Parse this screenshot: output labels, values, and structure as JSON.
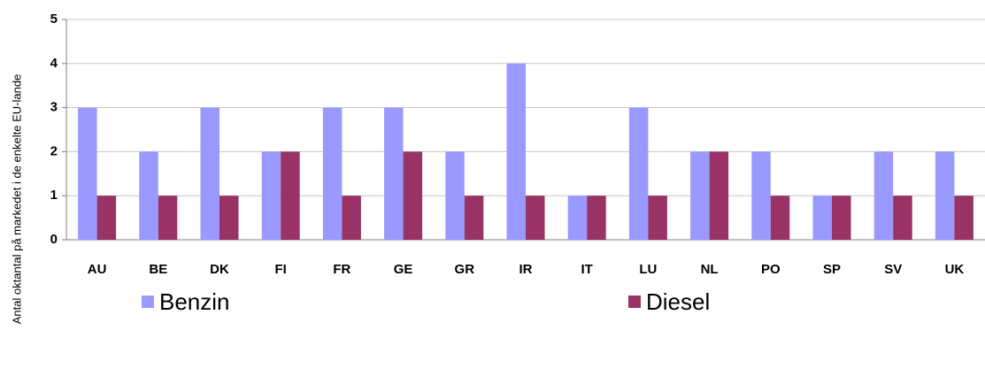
{
  "chart_data": {
    "type": "bar",
    "y_label": "Antal oktantal på markedet i de enkelte EU-lande",
    "categories": [
      "AU",
      "BE",
      "DK",
      "FI",
      "FR",
      "GE",
      "GR",
      "IR",
      "IT",
      "LU",
      "NL",
      "PO",
      "SP",
      "SV",
      "UK"
    ],
    "series": [
      {
        "name": "Benzin",
        "color": "#9999ff",
        "values": [
          3,
          2,
          3,
          2,
          3,
          3,
          2,
          4,
          1,
          3,
          2,
          2,
          1,
          2,
          2
        ]
      },
      {
        "name": "Diesel",
        "color": "#993366",
        "values": [
          1,
          1,
          1,
          2,
          1,
          2,
          1,
          1,
          1,
          1,
          2,
          1,
          1,
          1,
          1
        ]
      }
    ],
    "ylim": [
      0,
      5
    ],
    "yticks": [
      0,
      1,
      2,
      3,
      4,
      5
    ],
    "grid": true,
    "legend": "bottom"
  }
}
